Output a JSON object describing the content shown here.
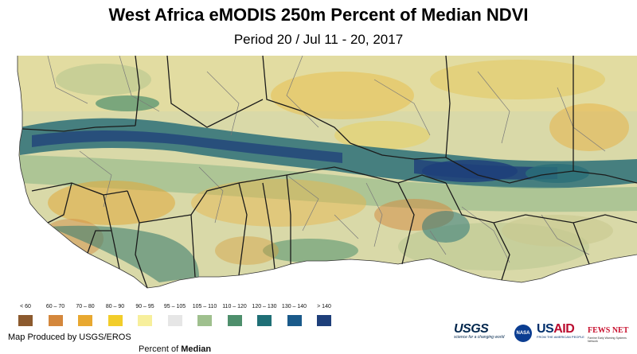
{
  "title": "West Africa eMODIS 250m Percent of Median NDVI",
  "subtitle": "Period 20 / Jul 11 - 20, 2017",
  "legend": {
    "title_prefix": "Percent of",
    "title_bold": "Median",
    "classes": [
      {
        "label": "< 60",
        "color": "#8c5a2e"
      },
      {
        "label": "60 – 70",
        "color": "#d4873c"
      },
      {
        "label": "70 – 80",
        "color": "#e8a830"
      },
      {
        "label": "80 – 90",
        "color": "#f2cd2a"
      },
      {
        "label": "90 – 95",
        "color": "#f7ef9c"
      },
      {
        "label": "95 – 105",
        "color": "#e6e6e6"
      },
      {
        "label": "105 – 110",
        "color": "#9fc08e"
      },
      {
        "label": "110 – 120",
        "color": "#4e8f6c"
      },
      {
        "label": "120 – 130",
        "color": "#1f6f76"
      },
      {
        "label": "130 – 140",
        "color": "#1a5a8a"
      },
      {
        "label": "> 140",
        "color": "#1e3f7a"
      }
    ]
  },
  "credit": "Map Produced by USGS/EROS",
  "logos": {
    "usgs": "USGS",
    "usgs_tagline": "science for a changing world",
    "nasa": "NASA",
    "usaid_us": "US",
    "usaid_aid": "AID",
    "usaid_tagline": "FROM THE AMERICAN PEOPLE",
    "fews": "FEWS NET",
    "fews_tagline": "Famine Early Warning Systems Network"
  },
  "colors": {
    "ocean": "#ffffff",
    "land_base": "#d9d9a8",
    "border": "#2b2b2b",
    "admin_border": "#7a7a7a"
  }
}
